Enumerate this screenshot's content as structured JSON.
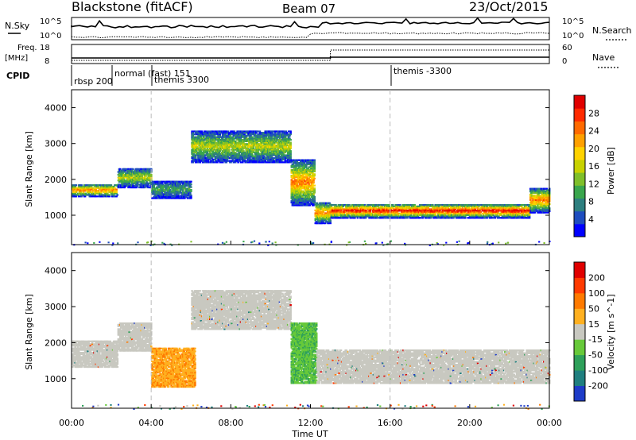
{
  "header": {
    "station": "Blackstone (fitACF)",
    "beam": "Beam 07",
    "date": "23/Oct/2015"
  },
  "summary": {
    "nsky_label": "N.Sky",
    "nsearch_label": "N.Search",
    "freq_label_1": "Freq.",
    "freq_label_2": "[MHz]",
    "nave_label": "Nave",
    "cpid_label": "CPID",
    "left_ticks_top": [
      "10^5",
      "10^0"
    ],
    "right_ticks_top": [
      "10^5",
      "10^0"
    ],
    "left_ticks_freq": [
      "18",
      "8"
    ],
    "right_ticks_nave": [
      "60",
      "0"
    ],
    "cpid_labels": [
      "rbsp 200",
      "normal (fast) 151",
      "themis 3300",
      "themis -3300"
    ],
    "freq_profile": {
      "before_13h": 10.3,
      "after_13h": 10.9,
      "nave_before_13h": 8,
      "nave_after_13h": 40
    }
  },
  "chart_data": [
    {
      "type": "heatmap",
      "name": "Power panel",
      "ylabel": "Slant Range [km]",
      "xlim": [
        0,
        24
      ],
      "ylim": [
        180,
        4500
      ],
      "yticks": [
        1000,
        2000,
        3000,
        4000
      ],
      "colorbar_label": "Power [dB]",
      "colorbar_ticks": [
        4,
        8,
        12,
        16,
        20,
        24,
        28
      ],
      "colorbar_colors": [
        "#0000ff",
        "#1e4dbe",
        "#2e7f7f",
        "#3aa64d",
        "#7fbf2a",
        "#c8d200",
        "#ffd200",
        "#ffa000",
        "#ff6a00",
        "#ff2a00",
        "#e00000"
      ],
      "bands": [
        {
          "t": [
            0.0,
            2.3
          ],
          "r": [
            1550,
            1900
          ],
          "level": "high"
        },
        {
          "t": [
            2.3,
            4.0
          ],
          "r": [
            1800,
            2350
          ],
          "level": "mid"
        },
        {
          "t": [
            4.0,
            6.0
          ],
          "r": [
            1500,
            2000
          ],
          "level": "low"
        },
        {
          "t": [
            6.0,
            11.0
          ],
          "r": [
            2500,
            3400
          ],
          "level": "mid"
        },
        {
          "t": [
            11.0,
            12.2
          ],
          "r": [
            1300,
            2600
          ],
          "level": "high"
        },
        {
          "t": [
            12.2,
            13.0
          ],
          "r": [
            800,
            1400
          ],
          "level": "high"
        },
        {
          "t": [
            13.0,
            23.0
          ],
          "r": [
            950,
            1350
          ],
          "level": "max"
        },
        {
          "t": [
            23.0,
            24.0
          ],
          "r": [
            1100,
            1800
          ],
          "level": "high"
        }
      ]
    },
    {
      "type": "heatmap",
      "name": "Velocity panel",
      "ylabel": "Slant Range [km]",
      "xlabel": "Time UT",
      "xlim": [
        0,
        24
      ],
      "ylim": [
        180,
        4500
      ],
      "yticks": [
        1000,
        2000,
        3000,
        4000
      ],
      "xticks": [
        "00:00",
        "04:00",
        "08:00",
        "12:00",
        "16:00",
        "20:00",
        "00:00"
      ],
      "colorbar_label": "Velocity [m s^-1]",
      "colorbar_ticks": [
        200,
        100,
        50,
        15,
        -15,
        -50,
        -100,
        -200
      ],
      "colorbar_colors": [
        "#1e3cc8",
        "#1f7f7f",
        "#2ea05a",
        "#67c93a",
        "#c8c8c0",
        "#ffb020",
        "#ff7a00",
        "#ff3a00",
        "#e00000"
      ],
      "bands": [
        {
          "t": [
            0.0,
            2.3
          ],
          "r": [
            1350,
            2100
          ],
          "level": "grey"
        },
        {
          "t": [
            2.3,
            4.0
          ],
          "r": [
            1800,
            2600
          ],
          "level": "grey"
        },
        {
          "t": [
            4.0,
            6.2
          ],
          "r": [
            800,
            1900
          ],
          "level": "orange"
        },
        {
          "t": [
            6.0,
            11.0
          ],
          "r": [
            2400,
            3500
          ],
          "level": "grey"
        },
        {
          "t": [
            11.0,
            12.3
          ],
          "r": [
            900,
            2600
          ],
          "level": "green"
        },
        {
          "t": [
            12.3,
            24.0
          ],
          "r": [
            900,
            1850
          ],
          "level": "grey"
        }
      ]
    }
  ],
  "footer": {
    "xaxis_title": "Time UT"
  }
}
